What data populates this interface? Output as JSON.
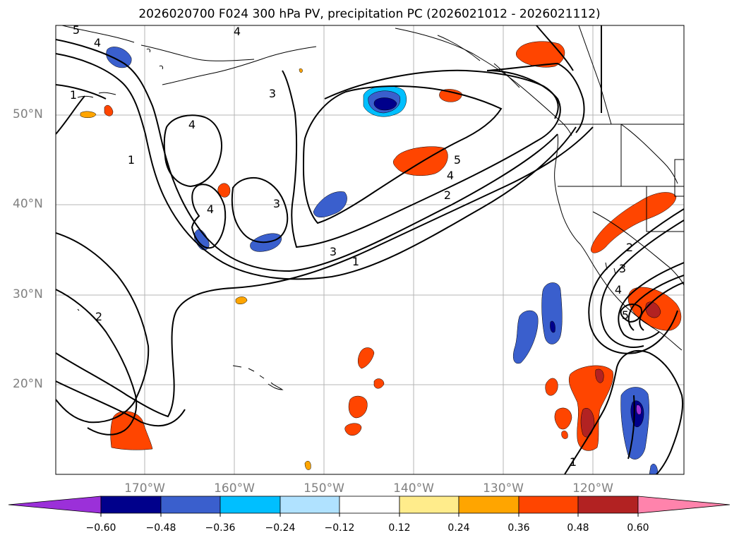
{
  "title": "2026020700 F024 300 hPa PV, precipitation PC (2026021012 - 2026021112)",
  "map": {
    "lat_ticks": [
      "50°N",
      "40°N",
      "30°N",
      "20°N"
    ],
    "lon_ticks": [
      "170°W",
      "160°W",
      "150°W",
      "140°W",
      "130°W",
      "120°W"
    ],
    "pv_contour_labels": [
      "5",
      "4",
      "1",
      "4",
      "1",
      "3",
      "4",
      "4",
      "3",
      "5",
      "4",
      "2",
      "3",
      "1",
      "2",
      "2",
      "3",
      "4",
      "5",
      "1"
    ]
  },
  "colorbar": {
    "colors": [
      "#9b30d9",
      "#00008b",
      "#3a5fcd",
      "#00bfff",
      "#b0e2ff",
      "#ffffff",
      "#ffec8b",
      "#ffa500",
      "#ff4500",
      "#b22222",
      "#ff83ac"
    ],
    "labels": [
      "−0.60",
      "−0.48",
      "−0.36",
      "−0.24",
      "−0.12",
      "0.12",
      "0.24",
      "0.36",
      "0.48",
      "0.60"
    ]
  },
  "colors": {
    "contour": "#000000",
    "grid": "#b4b4b4",
    "coast": "#000000"
  }
}
